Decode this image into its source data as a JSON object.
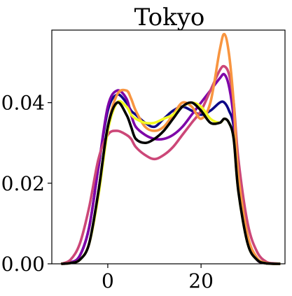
{
  "chart_data": {
    "type": "line",
    "title": "Tokyo",
    "xlabel": "",
    "ylabel": "",
    "xlim": [
      -12,
      38
    ],
    "ylim": [
      0,
      0.058
    ],
    "x_ticks": [
      0,
      20
    ],
    "x_tick_labels": [
      "0",
      "20"
    ],
    "y_ticks": [
      0.0,
      0.02,
      0.04
    ],
    "y_tick_labels": [
      "0.00",
      "0.02",
      "0.04"
    ],
    "grid": false,
    "x": [
      -10,
      -8,
      -6,
      -4,
      -2,
      0,
      2,
      4,
      5,
      6,
      8,
      10,
      12,
      14,
      16,
      18,
      20,
      22,
      24,
      25,
      26,
      27,
      28,
      30,
      32,
      34,
      36,
      37
    ],
    "series": [
      {
        "color": "#0d0887",
        "values": [
          0,
          0.0003,
          0.002,
          0.009,
          0.024,
          0.038,
          0.042,
          0.04,
          0.038,
          0.037,
          0.035,
          0.034,
          0.036,
          0.038,
          0.039,
          0.038,
          0.037,
          0.038,
          0.04,
          0.04,
          0.038,
          0.034,
          0.02,
          0.006,
          0.001,
          0.0002,
          0,
          0
        ]
      },
      {
        "color": "#7e03a8",
        "values": [
          0,
          0.0003,
          0.002,
          0.009,
          0.024,
          0.039,
          0.043,
          0.041,
          0.037,
          0.034,
          0.032,
          0.031,
          0.031,
          0.032,
          0.034,
          0.037,
          0.04,
          0.043,
          0.046,
          0.047,
          0.044,
          0.036,
          0.02,
          0.006,
          0.001,
          0.0002,
          0,
          0
        ]
      },
      {
        "color": "#cc4778",
        "values": [
          0,
          0.001,
          0.005,
          0.014,
          0.026,
          0.032,
          0.033,
          0.032,
          0.031,
          0.029,
          0.027,
          0.026,
          0.027,
          0.029,
          0.032,
          0.035,
          0.038,
          0.043,
          0.048,
          0.049,
          0.047,
          0.04,
          0.026,
          0.01,
          0.003,
          0.0005,
          0.0001,
          0
        ]
      },
      {
        "color": "#f89540",
        "values": [
          0,
          0.0002,
          0.001,
          0.005,
          0.018,
          0.034,
          0.042,
          0.043,
          0.041,
          0.038,
          0.034,
          0.033,
          0.034,
          0.037,
          0.04,
          0.039,
          0.036,
          0.04,
          0.053,
          0.057,
          0.052,
          0.04,
          0.022,
          0.007,
          0.0015,
          0.0002,
          0,
          0
        ]
      },
      {
        "color": "#f0f921",
        "values": [
          0,
          0.0002,
          0.001,
          0.005,
          0.017,
          0.033,
          0.04,
          0.039,
          0.037,
          0.036,
          0.035,
          0.035,
          0.036,
          0.037,
          0.039,
          0.04,
          0.039,
          0.036,
          0.035,
          0.036,
          0.035,
          0.031,
          0.018,
          0.005,
          0.001,
          0.0001,
          0,
          0
        ]
      },
      {
        "color": "#000000",
        "values": [
          0,
          0.0002,
          0.001,
          0.005,
          0.018,
          0.034,
          0.04,
          0.037,
          0.034,
          0.031,
          0.03,
          0.031,
          0.033,
          0.036,
          0.039,
          0.04,
          0.038,
          0.035,
          0.035,
          0.036,
          0.035,
          0.031,
          0.018,
          0.005,
          0.001,
          0.0001,
          0,
          0
        ]
      }
    ]
  }
}
